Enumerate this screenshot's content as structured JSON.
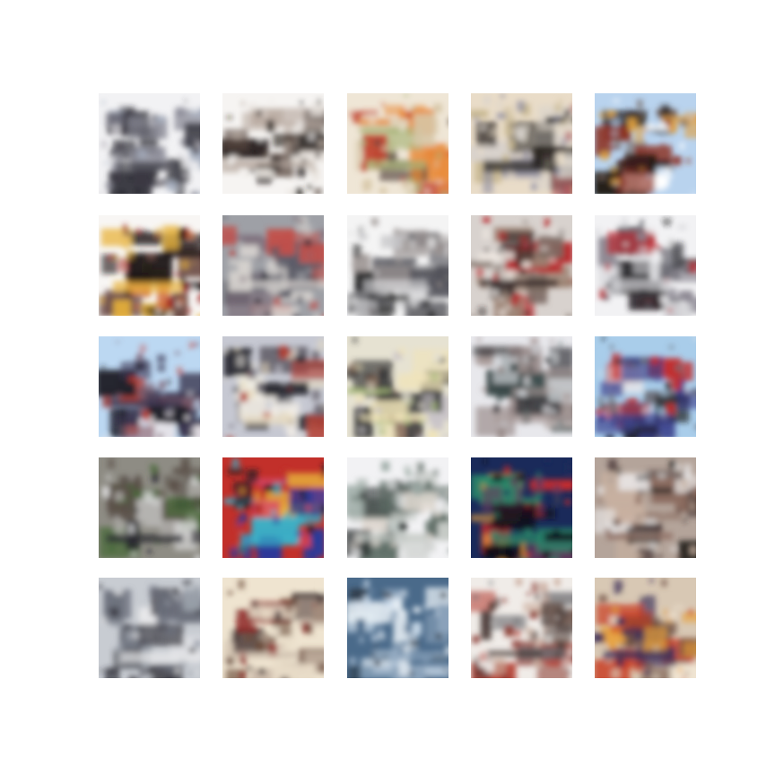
{
  "figure": {
    "rows": 5,
    "cols": 5,
    "background": "#ffffff",
    "tiles": [
      {
        "id": "r1c1",
        "palette": [
          "#f2f2f4",
          "#c9c6cc",
          "#8a8a96",
          "#3c3a44",
          "#1c1b24",
          "#a9b2c2"
        ]
      },
      {
        "id": "r1c2",
        "palette": [
          "#f6f4f2",
          "#2a2320",
          "#5b4a42",
          "#b8aaa0",
          "#111010",
          "#e9e4de"
        ]
      },
      {
        "id": "r1c3",
        "palette": [
          "#efe6d6",
          "#c2432e",
          "#e88a3a",
          "#a9b67a",
          "#5a4a44",
          "#d7c7a8"
        ]
      },
      {
        "id": "r1c4",
        "palette": [
          "#e9dcc8",
          "#8a8aa0",
          "#b05a5c",
          "#2a2624",
          "#d8d2cc",
          "#c8b890"
        ]
      },
      {
        "id": "r1c5",
        "palette": [
          "#b9d3ee",
          "#8b2f22",
          "#e0a040",
          "#231a18",
          "#6b5a52",
          "#ffffff"
        ]
      },
      {
        "id": "r2c1",
        "palette": [
          "#f8f6f4",
          "#a52a24",
          "#1a1414",
          "#e8b23a",
          "#6b4a44",
          "#d06a3a"
        ]
      },
      {
        "id": "r2c2",
        "palette": [
          "#9ea0a6",
          "#c2504a",
          "#5a5a66",
          "#d8d4d0",
          "#2b2b33",
          "#7c6b78"
        ]
      },
      {
        "id": "r2c3",
        "palette": [
          "#f4f4f4",
          "#6a6a6e",
          "#2a2a2c",
          "#c8c8ca",
          "#9a9290",
          "#505058"
        ]
      },
      {
        "id": "r2c4",
        "palette": [
          "#d8d2ce",
          "#b8252a",
          "#7a6a62",
          "#2a1e1e",
          "#efe8e2",
          "#9a8070"
        ]
      },
      {
        "id": "r2c5",
        "palette": [
          "#f2f2f4",
          "#b82a32",
          "#4a4a52",
          "#d6d6da",
          "#222024",
          "#8a8690"
        ]
      },
      {
        "id": "r3c1",
        "palette": [
          "#bcd8f2",
          "#c33a2a",
          "#7a5a6a",
          "#3a3650",
          "#e8e4e8",
          "#20202a"
        ]
      },
      {
        "id": "r3c2",
        "palette": [
          "#c6c8d2",
          "#2a2a32",
          "#b23a2e",
          "#e8dcc0",
          "#6a6670",
          "#f2eee6"
        ]
      },
      {
        "id": "r3c3",
        "palette": [
          "#e6e2d2",
          "#a6b87a",
          "#7a5a48",
          "#f0e4b8",
          "#c8c2c8",
          "#3a3a3a"
        ]
      },
      {
        "id": "r3c4",
        "palette": [
          "#e8e8ec",
          "#8a7a78",
          "#3a4a4a",
          "#a89a98",
          "#d0d4d8",
          "#2a2a2e"
        ]
      },
      {
        "id": "r3c5",
        "palette": [
          "#a9cdea",
          "#1a1a1e",
          "#c22a2a",
          "#3a3e8a",
          "#e6e6ea",
          "#6a6a72"
        ]
      },
      {
        "id": "r4c1",
        "palette": [
          "#8e8c84",
          "#e8e8ea",
          "#4a6a3a",
          "#2a2a30",
          "#b8b6b4",
          "#5a5048"
        ]
      },
      {
        "id": "r4c2",
        "palette": [
          "#c2302a",
          "#2a3a9a",
          "#e8b43a",
          "#3ab0c8",
          "#1a1a22",
          "#d8486a"
        ]
      },
      {
        "id": "r4c3",
        "palette": [
          "#f2f2f4",
          "#9aa8a2",
          "#5a6a62",
          "#c8ccc8",
          "#2a2e2e",
          "#e0d8d0"
        ]
      },
      {
        "id": "r4c4",
        "palette": [
          "#1a2a5a",
          "#d02a2a",
          "#e8a040",
          "#2a8a6a",
          "#0e0e18",
          "#6a3a5a"
        ]
      },
      {
        "id": "r4c5",
        "palette": [
          "#b4a49a",
          "#e8e6e6",
          "#4a3a38",
          "#8a6a5e",
          "#2a2624",
          "#c8b0a0"
        ]
      },
      {
        "id": "r5c1",
        "palette": [
          "#c8ccd2",
          "#2a2a32",
          "#6a6e7a",
          "#e8e8ea",
          "#4a4a52",
          "#9aa0aa"
        ]
      },
      {
        "id": "r5c2",
        "palette": [
          "#efe4d0",
          "#8a1e1e",
          "#3a2a2a",
          "#c8b8a8",
          "#6a4a3a",
          "#e8dcc8"
        ]
      },
      {
        "id": "r5c3",
        "palette": [
          "#4a6a8a",
          "#c8d8e8",
          "#2a3440",
          "#8aa2ba",
          "#e6eef4",
          "#1a1e26"
        ]
      },
      {
        "id": "r5c4",
        "palette": [
          "#f0ece8",
          "#8a3a32",
          "#c8a898",
          "#4a3a36",
          "#b23a2e",
          "#6a6a6e"
        ]
      },
      {
        "id": "r5c5",
        "palette": [
          "#d8c8b4",
          "#c83a1e",
          "#e8a03a",
          "#3a2e58",
          "#6a4a3e",
          "#f0e4d2"
        ]
      }
    ]
  }
}
